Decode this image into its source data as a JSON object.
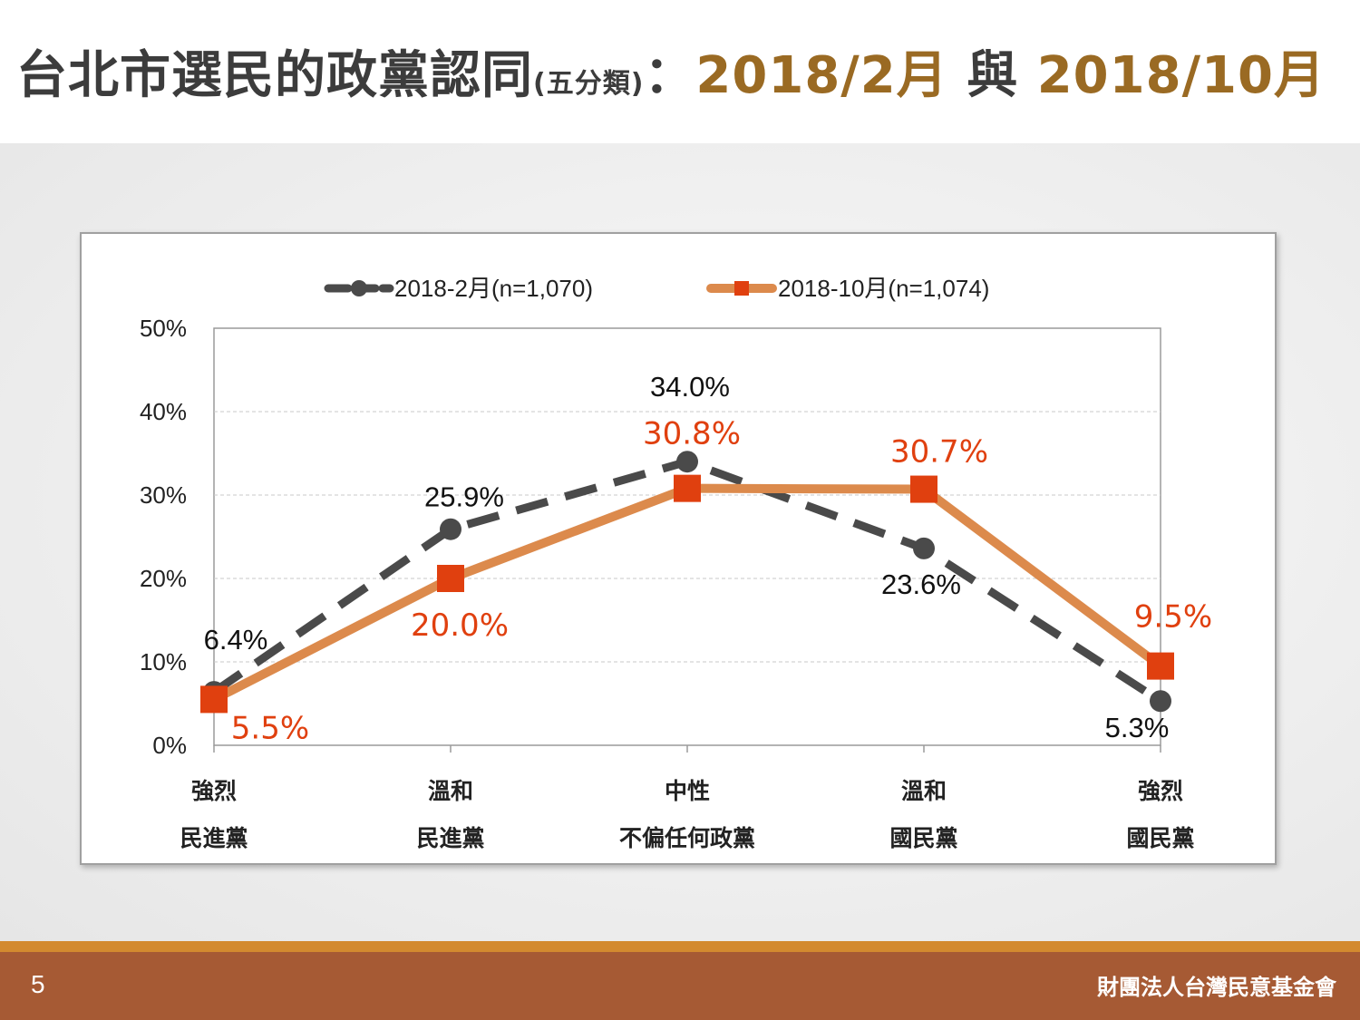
{
  "slide": {
    "title_main": "台北市選民的政黨認同",
    "title_paren": "(五分類)",
    "title_colon": "：",
    "title_period1": "2018/2月",
    "title_join": " 與 ",
    "title_period2": "2018/10月",
    "page_number": "5",
    "organization": "財團法人台灣民意基金會"
  },
  "chart_data": {
    "type": "line",
    "categories": [
      [
        "強烈",
        "民進黨"
      ],
      [
        "溫和",
        "民進黨"
      ],
      [
        "中性",
        "不偏任何政黨"
      ],
      [
        "溫和",
        "國民黨"
      ],
      [
        "強烈",
        "國民黨"
      ]
    ],
    "y_ticks": [
      "0%",
      "10%",
      "20%",
      "30%",
      "40%",
      "50%"
    ],
    "ylim": [
      0,
      50
    ],
    "grid": true,
    "legend_position": "top",
    "series": [
      {
        "name": "2018-2月(n=1,070)",
        "values": [
          6.4,
          25.9,
          34.0,
          23.6,
          5.3
        ],
        "labels": [
          "6.4%",
          "25.9%",
          "34.0%",
          "23.6%",
          "5.3%"
        ],
        "color": "#4a4a4a",
        "line_style": "dashed",
        "marker": "circle"
      },
      {
        "name": "2018-10月(n=1,074)",
        "values": [
          5.5,
          20.0,
          30.8,
          30.7,
          9.5
        ],
        "labels": [
          "5.5%",
          "20.0%",
          "30.8%",
          "30.7%",
          "9.5%"
        ],
        "color": "#dc8a4c",
        "marker_color": "#e0400f",
        "line_style": "solid",
        "marker": "square"
      }
    ]
  }
}
